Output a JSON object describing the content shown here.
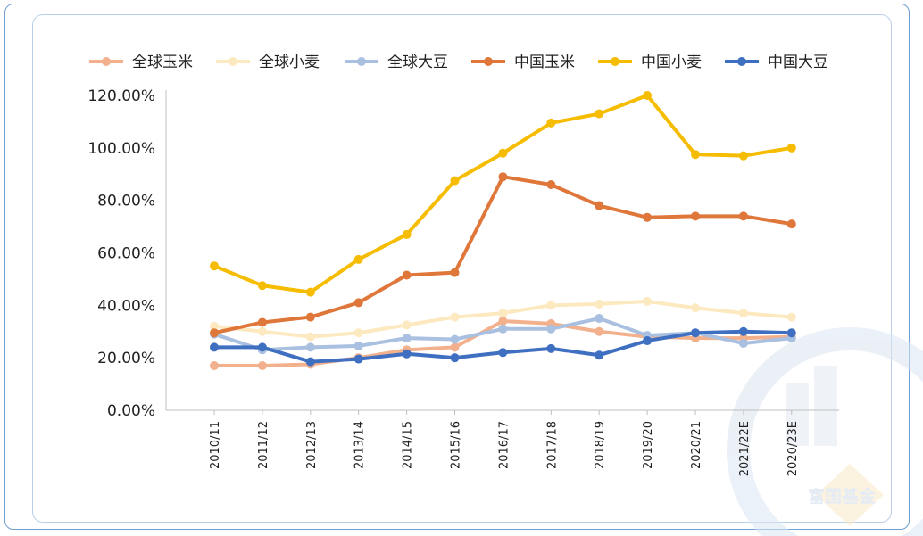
{
  "watermark": {
    "brand_text": "富国基金"
  },
  "chart_data": {
    "type": "line",
    "categories": [
      "2010/11",
      "2011/12",
      "2012/13",
      "2013/14",
      "2014/15",
      "2015/16",
      "2016/17",
      "2017/18",
      "2018/19",
      "2019/20",
      "2020/21",
      "2021/22E",
      "2020/23E"
    ],
    "ylim": [
      0,
      120
    ],
    "yticks": [
      "0.00%",
      "20.00%",
      "40.00%",
      "60.00%",
      "80.00%",
      "100.00%",
      "120.00%"
    ],
    "legend_position": "top",
    "grid": false,
    "series": [
      {
        "name": "全球玉米",
        "color": "#f2b08c",
        "values": [
          17,
          17,
          17.5,
          20,
          23,
          24,
          34,
          33,
          30,
          28,
          27.5,
          27.5,
          28
        ]
      },
      {
        "name": "全球小麦",
        "color": "#fde9c0",
        "values": [
          32,
          30,
          28,
          29.5,
          32.5,
          35.5,
          37,
          40,
          40.5,
          41.5,
          39,
          37,
          35.5
        ]
      },
      {
        "name": "全球大豆",
        "color": "#a9c0e0",
        "values": [
          29,
          23,
          24,
          24.5,
          27.5,
          27,
          31,
          31,
          35,
          28.5,
          29.5,
          25.5,
          27.5
        ]
      },
      {
        "name": "中国玉米",
        "color": "#e0773a",
        "values": [
          29.5,
          33.5,
          35.5,
          41,
          51.5,
          52.5,
          89,
          86,
          78,
          73.5,
          74,
          74,
          71
        ]
      },
      {
        "name": "中国小麦",
        "color": "#f5bc00",
        "values": [
          55,
          47.5,
          45,
          57.5,
          67,
          87.5,
          98,
          109.5,
          113,
          120,
          97.5,
          97,
          100
        ]
      },
      {
        "name": "中国大豆",
        "color": "#3f6fc0",
        "values": [
          24,
          24,
          18.5,
          19.5,
          21.5,
          20,
          22,
          23.5,
          21,
          26.5,
          29.5,
          30,
          29.5
        ]
      }
    ]
  }
}
